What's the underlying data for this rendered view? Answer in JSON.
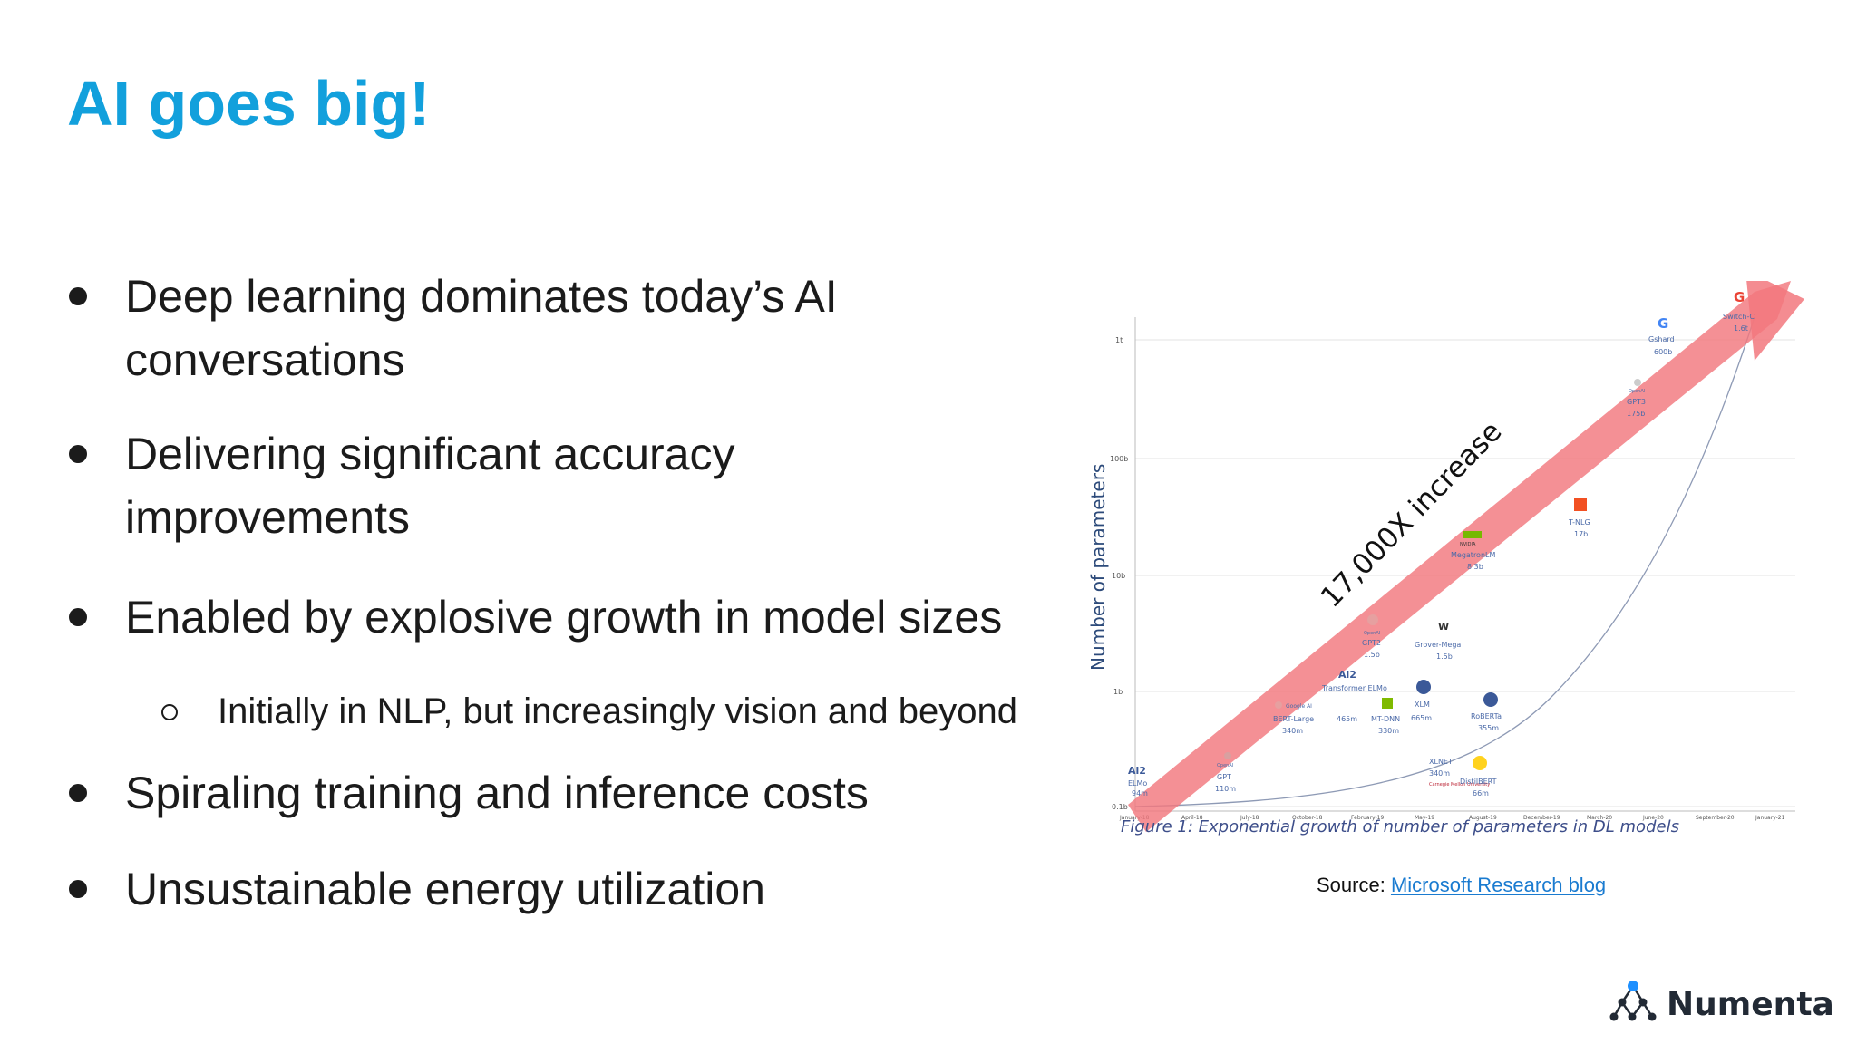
{
  "slide": {
    "title": "AI goes big!",
    "bullets": [
      {
        "line1": "Deep learning dominates today’s AI",
        "line2": "conversations"
      },
      {
        "line1": "Delivering significant accuracy",
        "line2": "improvements"
      },
      {
        "line1": "Enabled by explosive growth in model sizes"
      },
      {
        "sub": "Initially in NLP, but increasingly vision and beyond"
      },
      {
        "line1": "Spiraling training and inference costs"
      },
      {
        "line1": "Unsustainable energy utilization"
      }
    ]
  },
  "figure": {
    "ylabel": "Number of parameters",
    "arrow_label": "17,000X increase",
    "caption": "Figure 1: Exponential growth of number of parameters in DL models",
    "y_ticks": [
      "1t",
      "100b",
      "10b",
      "1b",
      "0.1b"
    ],
    "x_ticks": [
      "January-18",
      "April-18",
      "July-18",
      "October-18",
      "February-19",
      "May-19",
      "August-19",
      "December-19",
      "March-20",
      "June-20",
      "September-20",
      "January-21"
    ],
    "models": [
      {
        "org": "Ai2",
        "name": "ELMo",
        "size": "94m"
      },
      {
        "org": "OpenAI",
        "name": "GPT",
        "size": "110m"
      },
      {
        "org": "Google AI",
        "name": "BERT-Large",
        "size": "340m"
      },
      {
        "org": "Ai2",
        "name": "Transformer ELMo",
        "size": "465m"
      },
      {
        "org": "Microsoft",
        "name": "MT-DNN",
        "size": "330m"
      },
      {
        "org": "OpenAI",
        "name": "GPT2",
        "size": "1.5b"
      },
      {
        "org": "Facebook",
        "name": "XLM",
        "size": "665m"
      },
      {
        "org": "W",
        "name": "Grover-Mega",
        "size": "1.5b"
      },
      {
        "org": "Carnegie Mellon University",
        "name": "XLNET",
        "size": "340m"
      },
      {
        "org": "Facebook",
        "name": "RoBERTa",
        "size": "355m"
      },
      {
        "org": "Hugging Face",
        "name": "DistilBERT",
        "size": "66m"
      },
      {
        "org": "NVIDIA",
        "name": "MegatronLM",
        "size": "8.3b"
      },
      {
        "org": "Microsoft",
        "name": "T-NLG",
        "size": "17b"
      },
      {
        "org": "OpenAI",
        "name": "GPT3",
        "size": "175b"
      },
      {
        "org": "G",
        "name": "Gshard",
        "size": "600b"
      },
      {
        "org": "G",
        "name": "Switch-C",
        "size": "1.6t"
      }
    ]
  },
  "source": {
    "prefix": "Source:",
    "link": "Microsoft Research blog"
  },
  "logo": {
    "text": "Numenta"
  },
  "colors": {
    "title": "#12a0dc",
    "arrow": "#f08080",
    "link": "#1a7bd0"
  }
}
